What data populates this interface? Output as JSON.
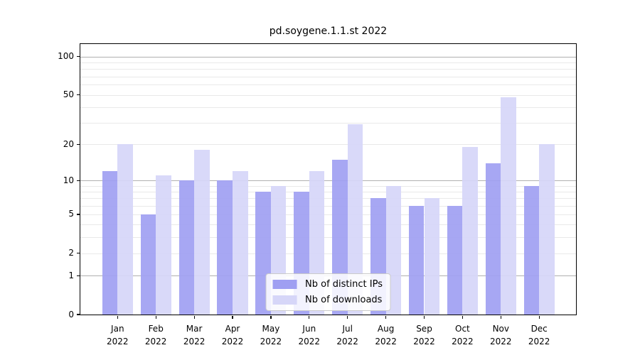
{
  "chart_data": {
    "type": "bar",
    "title": "pd.soygene.1.1.st 2022",
    "categories": [
      "Jan",
      "Feb",
      "Mar",
      "Apr",
      "May",
      "Jun",
      "Jul",
      "Aug",
      "Sep",
      "Oct",
      "Nov",
      "Dec"
    ],
    "year_label": "2022",
    "series": [
      {
        "name": "Nb of distinct IPs",
        "color": "#9f9ff2",
        "values": [
          12,
          5,
          10,
          10,
          8,
          8,
          15,
          7,
          6,
          6,
          14,
          9
        ]
      },
      {
        "name": "Nb of downloads",
        "color": "#d6d6f8",
        "values": [
          20,
          11,
          18,
          12,
          9,
          12,
          29,
          9,
          7,
          19,
          48,
          20
        ]
      }
    ],
    "xlabel": "",
    "ylabel": "",
    "y_scale": "log10(1+x)",
    "ylim": [
      0,
      125.6
    ],
    "yticks": [
      0,
      1,
      2,
      5,
      10,
      20,
      50,
      100
    ],
    "grid": {
      "on": true,
      "major_values": [
        1,
        10,
        100
      ],
      "minor_values": [
        2,
        3,
        4,
        5,
        6,
        7,
        8,
        9,
        20,
        30,
        40,
        50,
        60,
        70,
        80,
        90
      ],
      "major_color": "#b0b0b0",
      "minor_color": "#e9e9e9"
    },
    "legend_position": "lower center",
    "axis_color": "#000000",
    "background_color": "#ffffff"
  }
}
